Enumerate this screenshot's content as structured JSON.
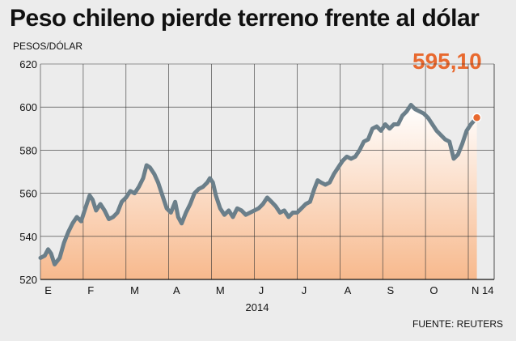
{
  "title": "Peso chileno pierde terreno frente al dólar",
  "source": "FUENTE: REUTERS",
  "chart_data": {
    "type": "area",
    "ylabel": "PESOS/DÓLAR",
    "xlabel": "2014",
    "ylim": [
      520,
      620
    ],
    "yticks": [
      520,
      540,
      560,
      580,
      600,
      620
    ],
    "months": [
      "E",
      "F",
      "M",
      "A",
      "M",
      "J",
      "J",
      "A",
      "S",
      "O",
      "N 14"
    ],
    "x_range_months": [
      0,
      10.2
    ],
    "grid": true,
    "last_value_label": "595,10",
    "colors": {
      "line": "#6b7f8a",
      "area_top": "#ffffff",
      "area_bottom": "#f7b98d",
      "highlight": "#e8692f",
      "grid": "#333333"
    },
    "series": [
      {
        "values": [
          [
            0.0,
            530
          ],
          [
            0.1,
            531
          ],
          [
            0.18,
            534
          ],
          [
            0.25,
            532
          ],
          [
            0.33,
            527
          ],
          [
            0.45,
            530
          ],
          [
            0.55,
            537
          ],
          [
            0.65,
            542
          ],
          [
            0.75,
            546
          ],
          [
            0.85,
            549
          ],
          [
            0.95,
            547
          ],
          [
            1.05,
            553
          ],
          [
            1.15,
            559
          ],
          [
            1.22,
            557
          ],
          [
            1.3,
            552
          ],
          [
            1.4,
            555
          ],
          [
            1.5,
            552
          ],
          [
            1.6,
            548
          ],
          [
            1.7,
            549
          ],
          [
            1.8,
            551
          ],
          [
            1.9,
            556
          ],
          [
            2.0,
            558
          ],
          [
            2.1,
            561
          ],
          [
            2.2,
            560
          ],
          [
            2.3,
            563
          ],
          [
            2.4,
            567
          ],
          [
            2.48,
            573
          ],
          [
            2.56,
            572
          ],
          [
            2.66,
            569
          ],
          [
            2.75,
            565
          ],
          [
            2.85,
            559
          ],
          [
            2.95,
            553
          ],
          [
            3.05,
            551
          ],
          [
            3.15,
            556
          ],
          [
            3.22,
            549
          ],
          [
            3.3,
            546
          ],
          [
            3.4,
            551
          ],
          [
            3.5,
            555
          ],
          [
            3.6,
            560
          ],
          [
            3.7,
            562
          ],
          [
            3.8,
            563
          ],
          [
            3.9,
            565
          ],
          [
            3.96,
            567
          ],
          [
            4.03,
            565
          ],
          [
            4.1,
            559
          ],
          [
            4.2,
            553
          ],
          [
            4.3,
            550
          ],
          [
            4.4,
            552
          ],
          [
            4.5,
            549
          ],
          [
            4.6,
            553
          ],
          [
            4.7,
            552
          ],
          [
            4.8,
            550
          ],
          [
            4.9,
            551
          ],
          [
            5.0,
            552
          ],
          [
            5.1,
            553
          ],
          [
            5.2,
            555
          ],
          [
            5.3,
            558
          ],
          [
            5.4,
            556
          ],
          [
            5.5,
            554
          ],
          [
            5.6,
            551
          ],
          [
            5.7,
            552
          ],
          [
            5.8,
            549
          ],
          [
            5.9,
            551
          ],
          [
            6.0,
            551
          ],
          [
            6.1,
            553
          ],
          [
            6.2,
            555
          ],
          [
            6.3,
            556
          ],
          [
            6.4,
            562
          ],
          [
            6.48,
            566
          ],
          [
            6.56,
            565
          ],
          [
            6.66,
            564
          ],
          [
            6.76,
            565
          ],
          [
            6.86,
            569
          ],
          [
            6.96,
            572
          ],
          [
            7.06,
            575
          ],
          [
            7.16,
            577
          ],
          [
            7.26,
            576
          ],
          [
            7.36,
            577
          ],
          [
            7.46,
            580
          ],
          [
            7.56,
            584
          ],
          [
            7.66,
            585
          ],
          [
            7.76,
            590
          ],
          [
            7.86,
            591
          ],
          [
            7.96,
            589
          ],
          [
            8.06,
            592
          ],
          [
            8.16,
            590
          ],
          [
            8.26,
            592
          ],
          [
            8.36,
            592
          ],
          [
            8.46,
            596
          ],
          [
            8.56,
            598
          ],
          [
            8.66,
            601
          ],
          [
            8.76,
            599
          ],
          [
            8.86,
            598
          ],
          [
            8.96,
            597
          ],
          [
            9.06,
            595
          ],
          [
            9.16,
            592
          ],
          [
            9.26,
            589
          ],
          [
            9.36,
            587
          ],
          [
            9.46,
            585
          ],
          [
            9.56,
            584
          ],
          [
            9.66,
            576
          ],
          [
            9.76,
            578
          ],
          [
            9.86,
            583
          ],
          [
            9.96,
            589
          ],
          [
            10.06,
            592
          ],
          [
            10.2,
            595.1
          ]
        ]
      }
    ]
  }
}
